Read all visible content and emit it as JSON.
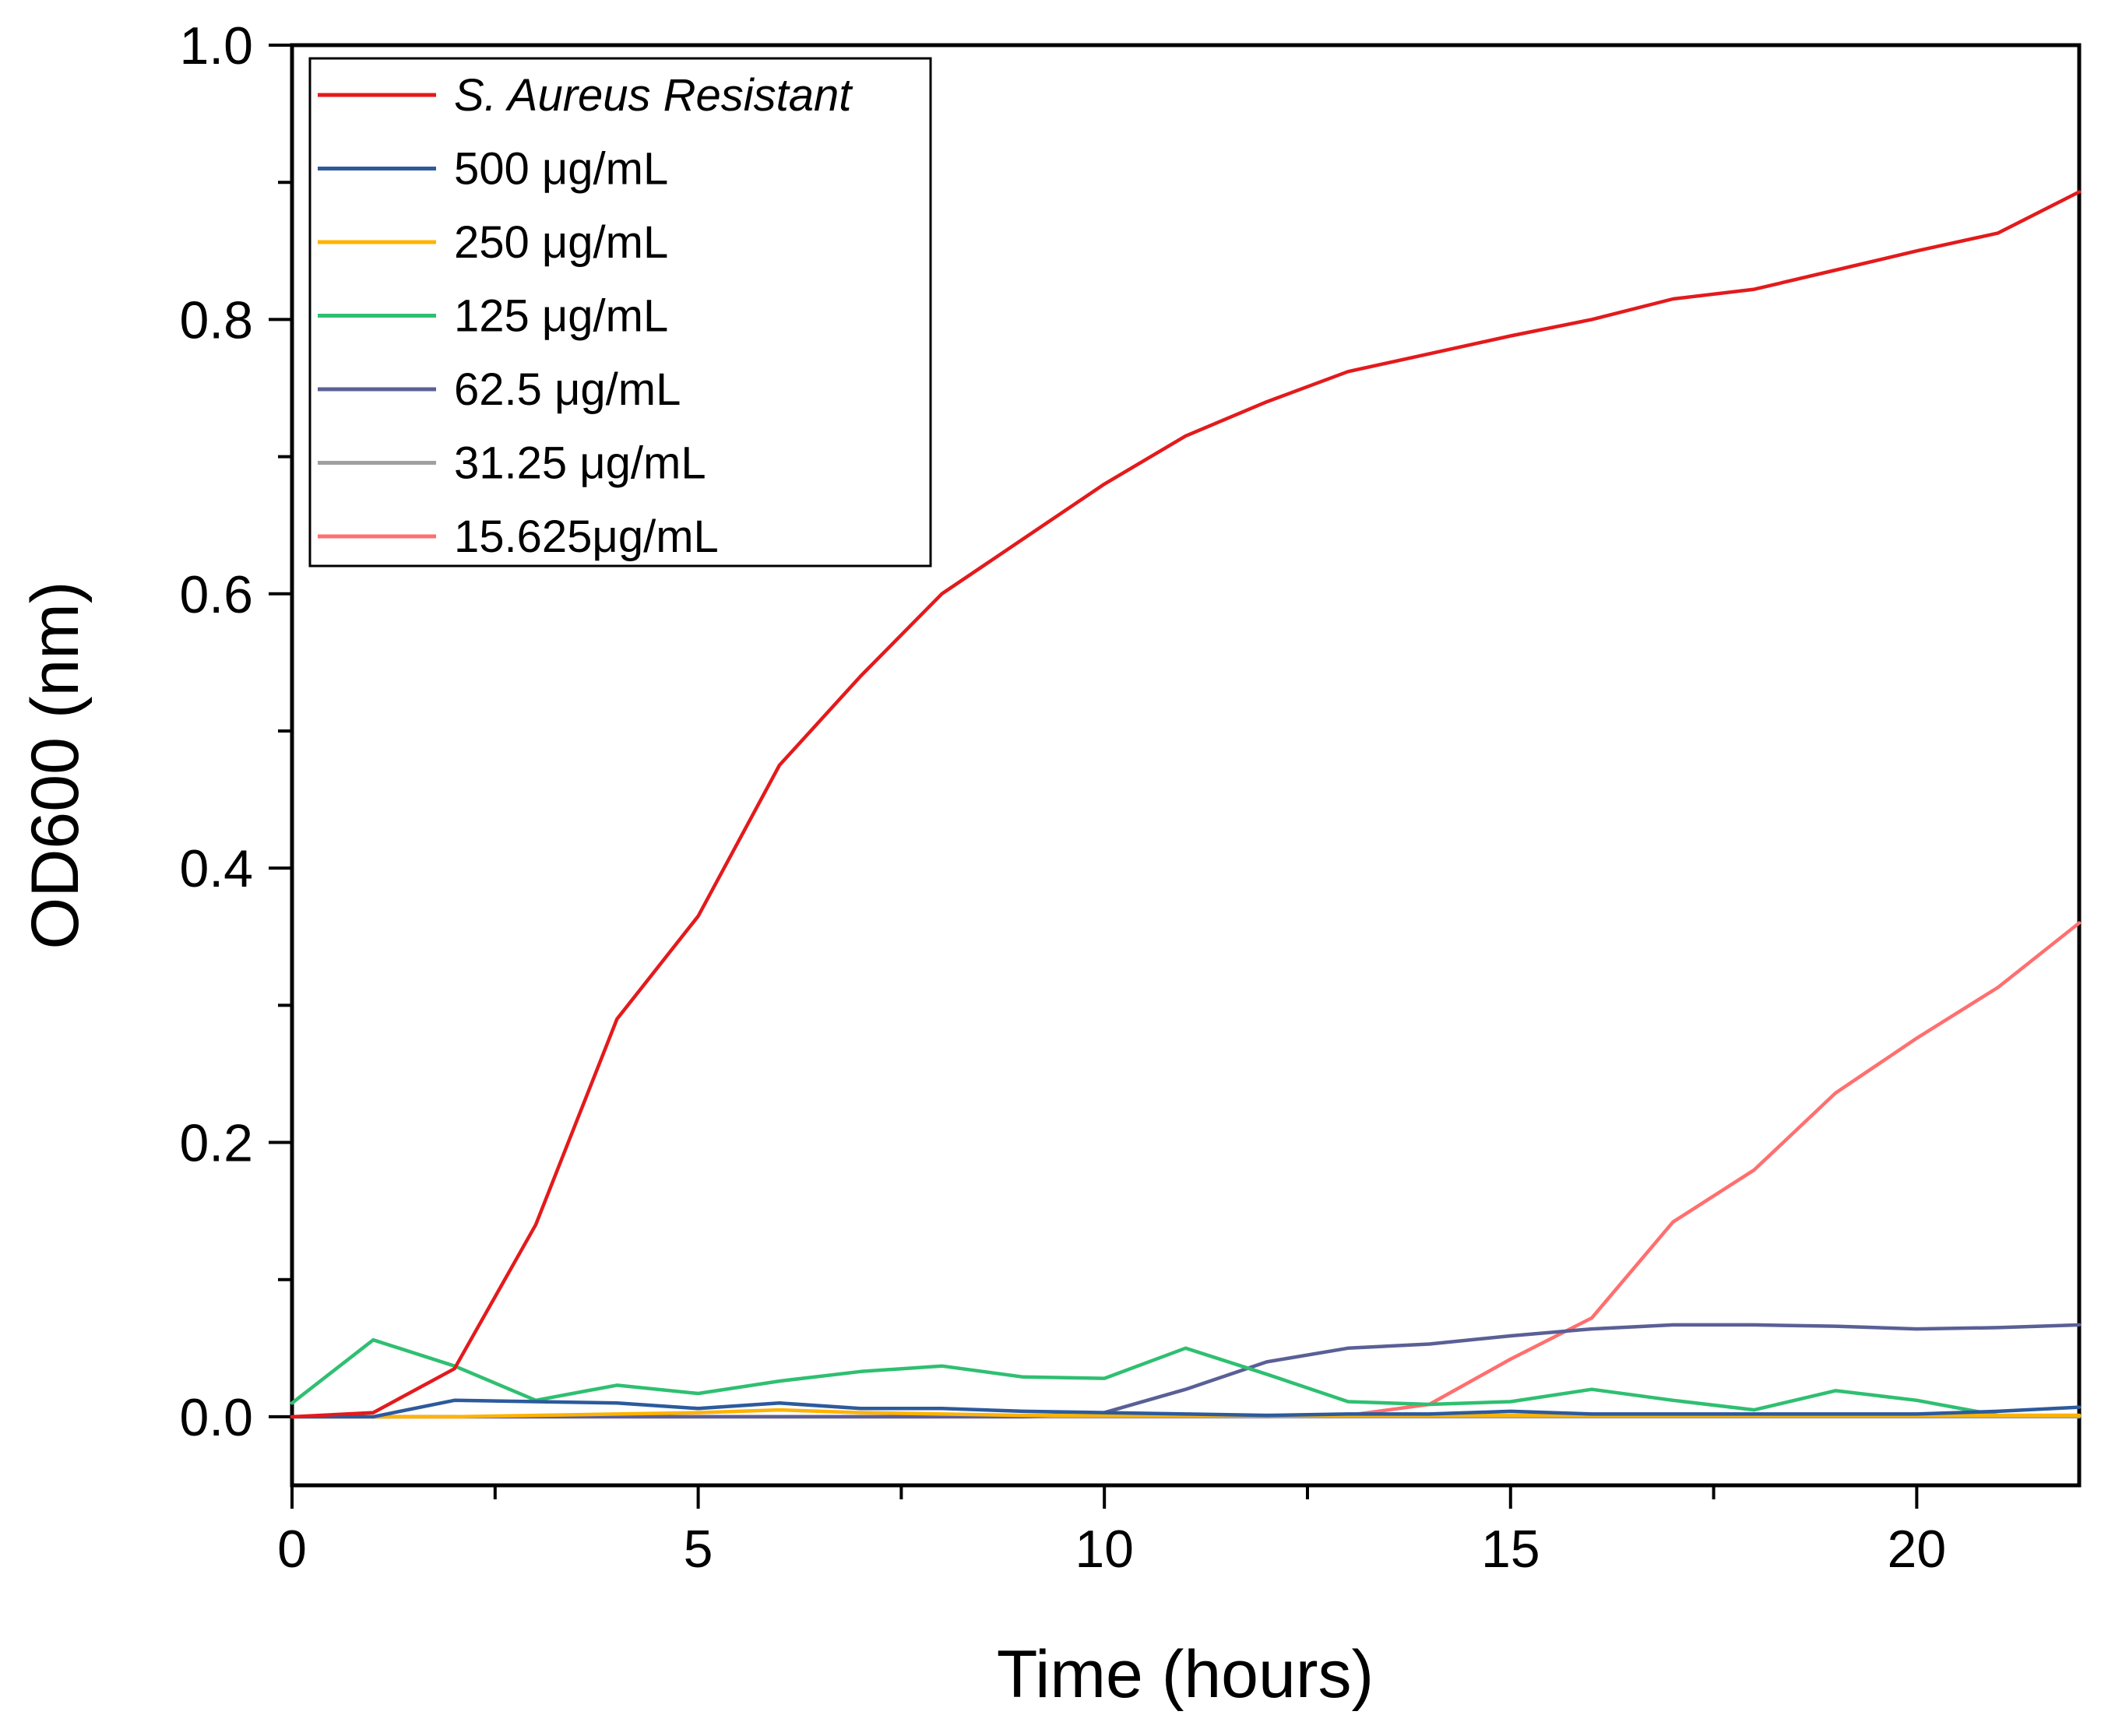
{
  "chart_data": {
    "type": "line",
    "xlabel": "Time (hours)",
    "ylabel": "OD600 (nm)",
    "xlim": [
      0,
      22
    ],
    "ylim": [
      -0.05,
      1.0
    ],
    "xticks": [
      0,
      5,
      10,
      15,
      20
    ],
    "xtick_labels": [
      "0",
      "5",
      "10",
      "15",
      "20"
    ],
    "yticks": [
      0.0,
      0.2,
      0.4,
      0.6,
      0.8,
      1.0
    ],
    "ytick_labels": [
      "0.0",
      "0.2",
      "0.4",
      "0.6",
      "0.8",
      "1.0"
    ],
    "legend_position": "top-left",
    "x": [
      0,
      1,
      2,
      3,
      4,
      5,
      6,
      7,
      8,
      9,
      10,
      11,
      12,
      13,
      14,
      15,
      16,
      17,
      18,
      19,
      20,
      21,
      22
    ],
    "series": [
      {
        "name": "S. Aureus Resistant",
        "italic": true,
        "color": "#e31a1c",
        "values": [
          0.0,
          0.003,
          0.035,
          0.14,
          0.29,
          0.365,
          0.475,
          0.54,
          0.6,
          0.64,
          0.68,
          0.715,
          0.74,
          0.762,
          0.775,
          0.788,
          0.8,
          0.815,
          0.822,
          0.836,
          0.85,
          0.863,
          0.893
        ]
      },
      {
        "name": "500 μg/mL",
        "italic": false,
        "color": "#2c5a9c",
        "values": [
          0.0,
          0.0,
          0.012,
          0.011,
          0.01,
          0.006,
          0.01,
          0.006,
          0.006,
          0.004,
          0.003,
          0.002,
          0.001,
          0.002,
          0.002,
          0.004,
          0.002,
          0.002,
          0.002,
          0.002,
          0.002,
          0.004,
          0.007
        ]
      },
      {
        "name": "250 μg/mL",
        "italic": false,
        "color": "#ffb300",
        "values": [
          0.0,
          0.0,
          0.0,
          0.001,
          0.002,
          0.003,
          0.005,
          0.003,
          0.002,
          0.001,
          0.001,
          0.001,
          0.001,
          0.001,
          0.001,
          0.001,
          0.001,
          0.001,
          0.001,
          0.001,
          0.001,
          0.001,
          0.001
        ]
      },
      {
        "name": "125 μg/mL",
        "italic": false,
        "color": "#2fbf71",
        "values": [
          0.01,
          0.056,
          0.037,
          0.012,
          0.023,
          0.017,
          0.026,
          0.033,
          0.037,
          0.029,
          0.028,
          0.05,
          0.031,
          0.011,
          0.009,
          0.011,
          0.02,
          0.012,
          0.005,
          0.019,
          0.012,
          0.001,
          0.001
        ]
      },
      {
        "name": "62.5 μg/mL",
        "italic": false,
        "color": "#5a5f96",
        "values": [
          0.0,
          0.0,
          0.0,
          0.0,
          0.0,
          0.0,
          0.0,
          0.0,
          0.0,
          0.0,
          0.003,
          0.02,
          0.04,
          0.05,
          0.053,
          0.059,
          0.064,
          0.067,
          0.067,
          0.066,
          0.064,
          0.065,
          0.067
        ]
      },
      {
        "name": "31.25 μg/mL",
        "italic": false,
        "color": "#a0a0a0",
        "values": [
          0.0,
          0.0,
          0.0,
          0.0,
          0.0,
          0.0,
          0.0,
          0.0,
          0.0,
          0.0,
          0.0,
          0.0,
          0.0,
          0.0,
          0.0,
          0.0,
          0.0,
          0.0,
          0.0,
          0.0,
          0.0,
          0.0,
          0.0
        ]
      },
      {
        "name": "15.625μg/mL",
        "italic": false,
        "color": "#ff6f6f",
        "values": [
          0.0,
          0.0,
          0.0,
          0.0,
          0.0,
          0.0,
          0.0,
          0.0,
          0.0,
          0.0,
          0.0,
          0.0,
          0.0,
          0.001,
          0.009,
          0.042,
          0.072,
          0.142,
          0.18,
          0.236,
          0.276,
          0.313,
          0.36
        ]
      }
    ]
  }
}
